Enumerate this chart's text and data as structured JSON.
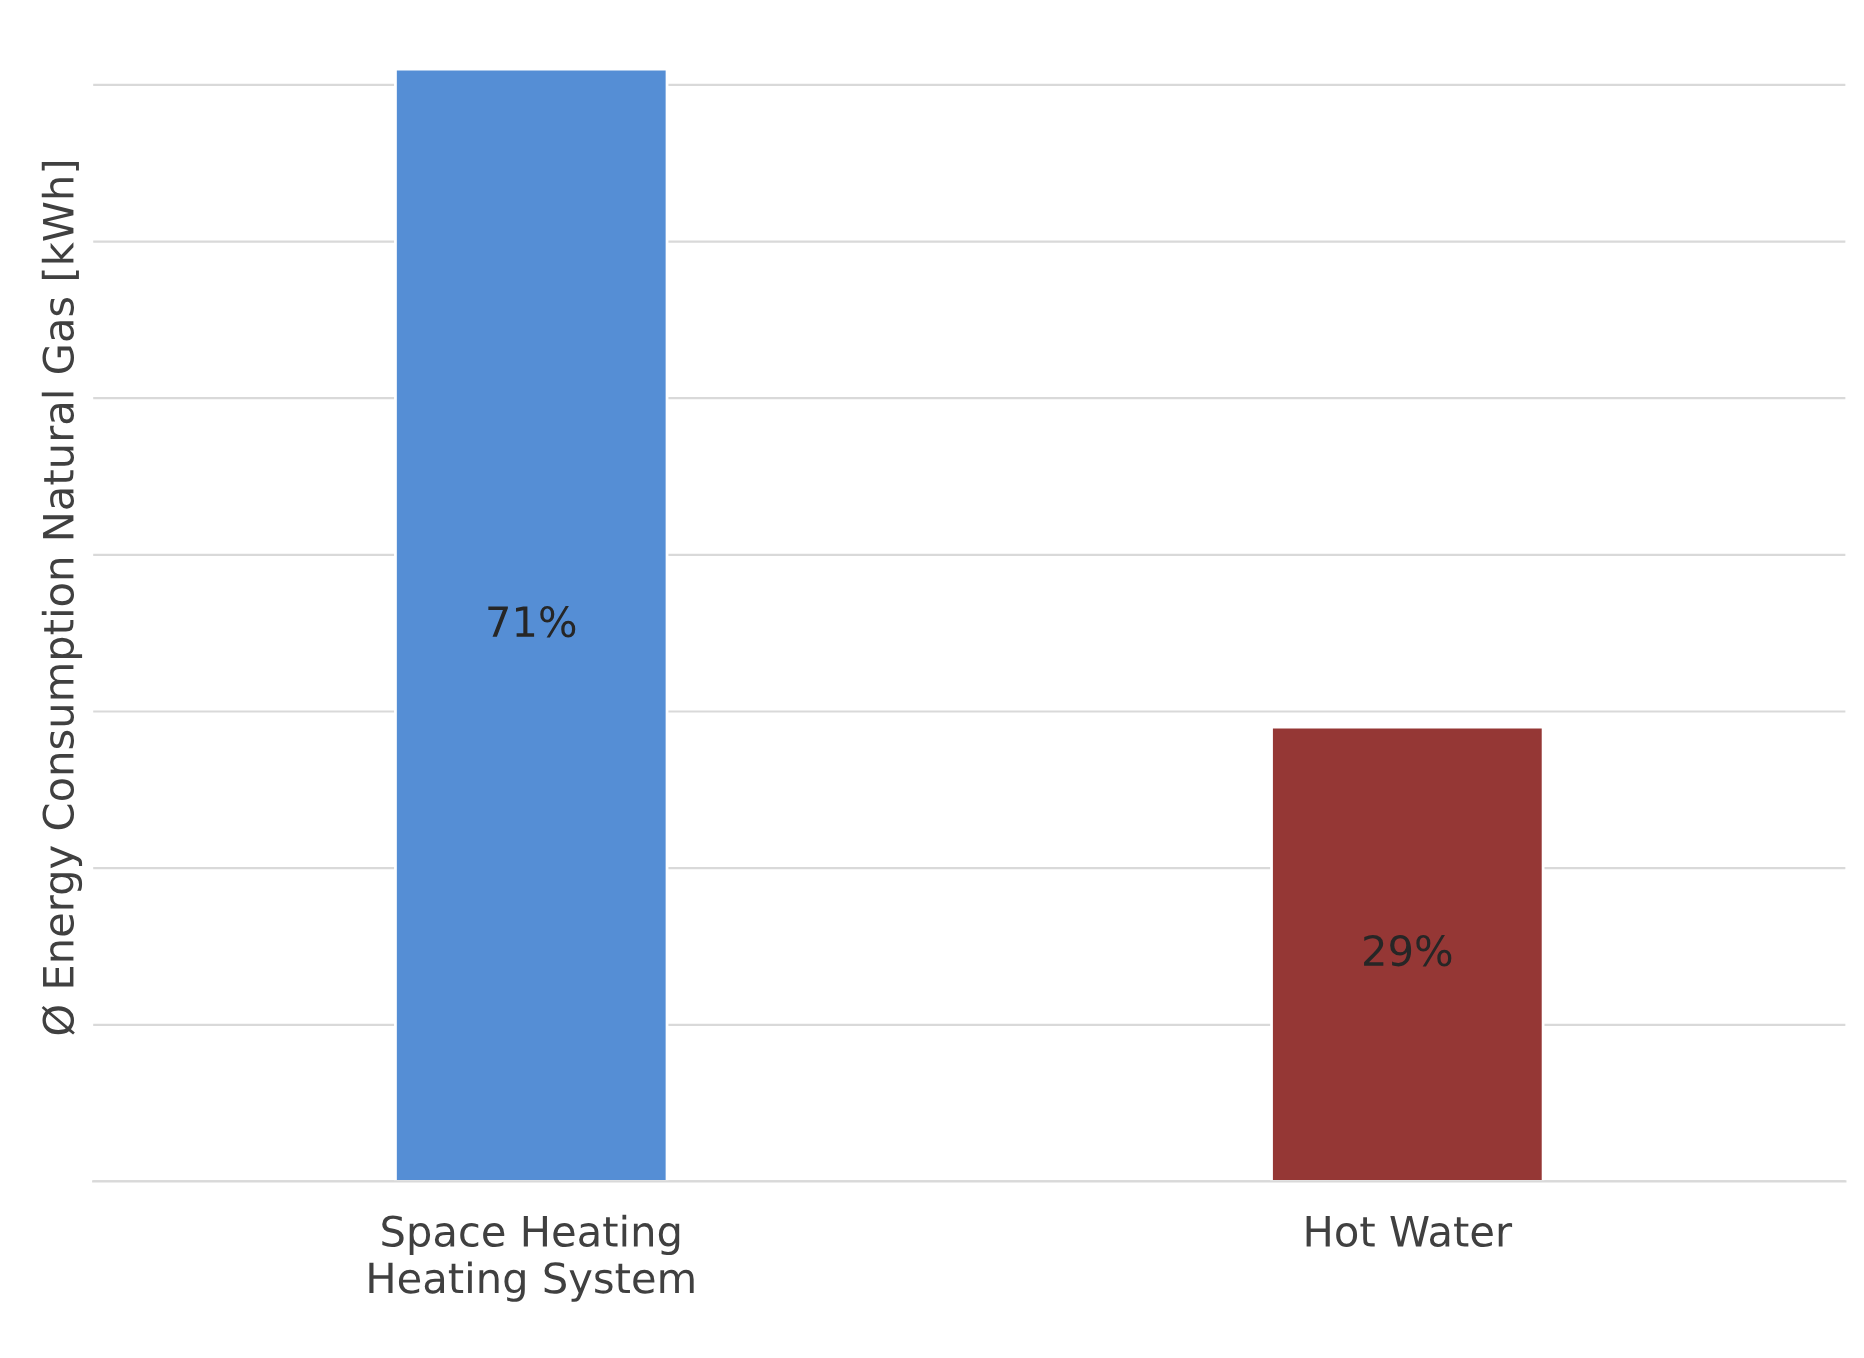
{
  "chart_data": {
    "type": "bar",
    "tick_labels": "x",
    "ylabel": "Ø Energy Consumption Natural Gas [kWh]",
    "categories": [
      "Space Heating\nHeating System",
      "Hot Water"
    ],
    "values": [
      71,
      29
    ],
    "colors": [
      "#558ed5",
      "#953735"
    ],
    "value_labels": [
      "71%",
      "29%"
    ],
    "grid": true
  }
}
